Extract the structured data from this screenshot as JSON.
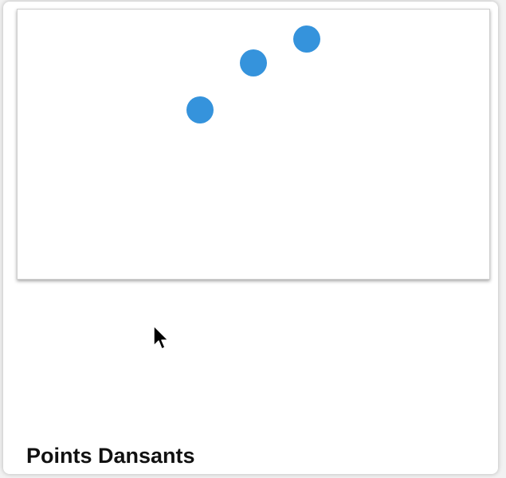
{
  "card": {
    "title": "Points Dansants"
  },
  "animation": {
    "dot_color": "#3593dc",
    "dots": [
      {
        "id": "dot-1"
      },
      {
        "id": "dot-2"
      },
      {
        "id": "dot-3"
      }
    ]
  },
  "cursor": {
    "icon": "arrow-cursor-icon"
  }
}
